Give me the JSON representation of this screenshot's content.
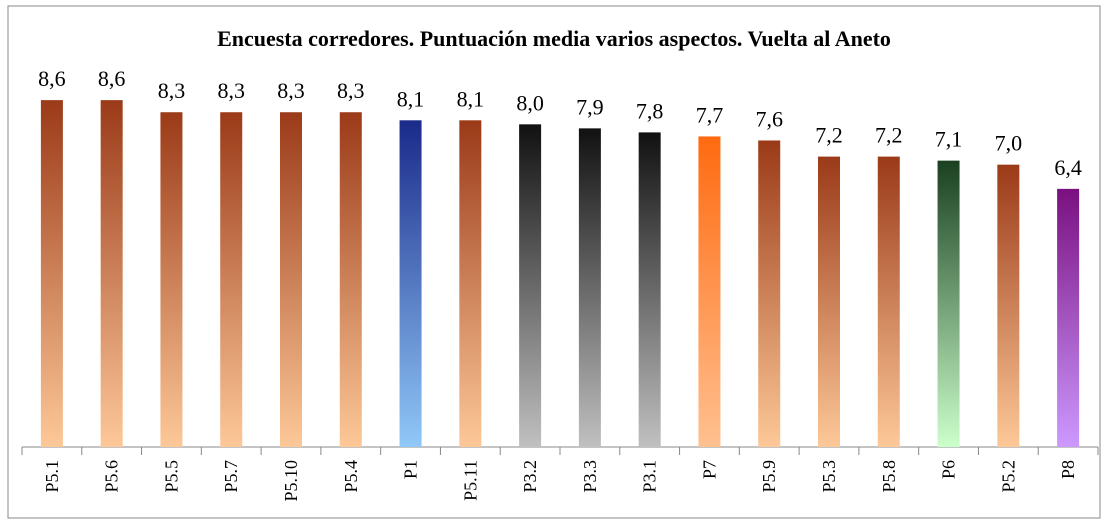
{
  "chart_data": {
    "type": "bar",
    "title": "Encuesta corredores. Puntuación media varios aspectos. Vuelta al Aneto",
    "categories": [
      "P5.1",
      "P5.6",
      "P5.5",
      "P5.7",
      "P5.10",
      "P5.4",
      "P1",
      "P5.11",
      "P3.2",
      "P3.3",
      "P3.1",
      "P7",
      "P5.9",
      "P5.3",
      "P5.8",
      "P6",
      "P5.2",
      "P8"
    ],
    "values": [
      8.6,
      8.6,
      8.3,
      8.3,
      8.3,
      8.3,
      8.1,
      8.1,
      8.0,
      7.9,
      7.8,
      7.7,
      7.6,
      7.2,
      7.2,
      7.1,
      7.0,
      6.4
    ],
    "value_labels": [
      "8,6",
      "8,6",
      "8,3",
      "8,3",
      "8,3",
      "8,3",
      "8,1",
      "8,1",
      "8,0",
      "7,9",
      "7,8",
      "7,7",
      "7,6",
      "7,2",
      "7,2",
      "7,1",
      "7,0",
      "6,4"
    ],
    "colors": [
      "#9b3a18",
      "#9b3a18",
      "#9b3a18",
      "#9b3a18",
      "#9b3a18",
      "#9b3a18",
      "#1a2a8a",
      "#9b3a18",
      "#111111",
      "#111111",
      "#111111",
      "#ff6a10",
      "#9b3a18",
      "#9b3a18",
      "#9b3a18",
      "#1a4020",
      "#9b3a18",
      "#7a1080"
    ],
    "colors_bottom": [
      "#fdc898",
      "#fdc898",
      "#fdc898",
      "#fdc898",
      "#fdc898",
      "#fdc898",
      "#90c8f8",
      "#fdc898",
      "#c0c0c0",
      "#c0c0c0",
      "#c0c0c0",
      "#ffc090",
      "#fdc898",
      "#fdc898",
      "#fdc898",
      "#ccffcc",
      "#fdc898",
      "#cc99ff"
    ],
    "ylim": [
      0,
      9
    ]
  }
}
